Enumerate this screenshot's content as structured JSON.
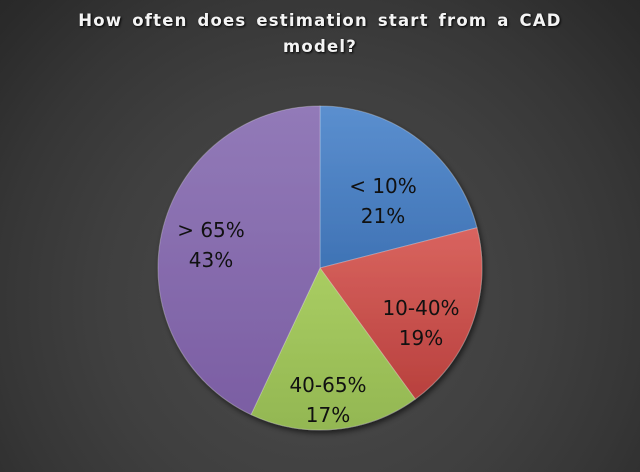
{
  "chart_data": {
    "type": "pie",
    "title": "How often does estimation start from a CAD model?",
    "categories": [
      "< 10%",
      "10-40%",
      "40-65%",
      "> 65%"
    ],
    "values": [
      21,
      19,
      17,
      43
    ],
    "colors": [
      "#4a7ebb",
      "#c0504d",
      "#9bbb59",
      "#8064a2"
    ],
    "labels": [
      {
        "category": "< 10%",
        "percent": "21%"
      },
      {
        "category": "10-40%",
        "percent": "19%"
      },
      {
        "category": "40-65%",
        "percent": "17%"
      },
      {
        "category": "> 65%",
        "percent": "43%"
      }
    ],
    "legend": "none",
    "start_angle": "12 o'clock, clockwise"
  }
}
